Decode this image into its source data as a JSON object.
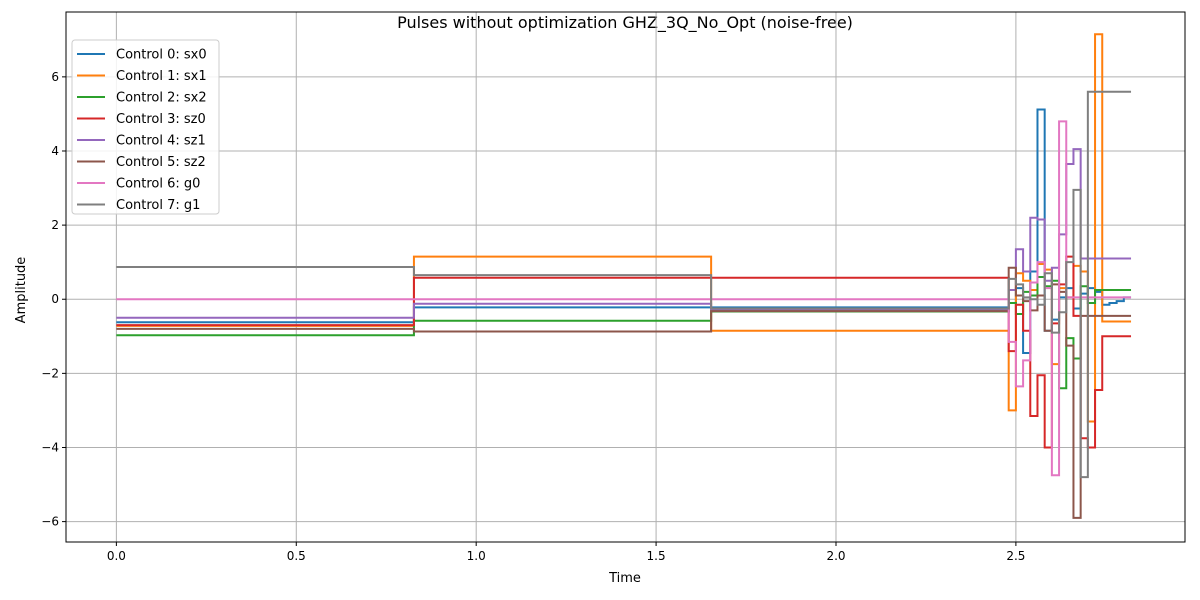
{
  "chart_data": {
    "type": "line",
    "title": "Pulses without optimization GHZ_3Q_No_Opt (noise-free)",
    "xlabel": "Time",
    "ylabel": "Amplitude",
    "xlim": [
      -0.14,
      2.97
    ],
    "ylim": [
      -6.55,
      7.75
    ],
    "xticks": [
      0.0,
      0.5,
      1.0,
      1.5,
      2.0,
      2.5
    ],
    "xtick_labels": [
      "0.0",
      "0.5",
      "1.0",
      "1.5",
      "2.0",
      "2.5"
    ],
    "yticks": [
      -6,
      -4,
      -2,
      0,
      2,
      4,
      6
    ],
    "ytick_labels": [
      "−6",
      "−4",
      "−2",
      "0",
      "2",
      "4",
      "6"
    ],
    "grid": true,
    "legend_position": "upper-left",
    "step_style": "post",
    "x_edges": [
      0.0,
      0.827,
      1.653,
      2.48,
      2.5,
      2.52,
      2.54,
      2.56,
      2.58,
      2.6,
      2.62,
      2.64,
      2.66,
      2.68,
      2.7,
      2.72,
      2.74,
      2.76,
      2.78,
      2.8,
      2.82
    ],
    "series": [
      {
        "name": "Control 0: sx0",
        "color": "#1f77b4",
        "values": [
          -0.62,
          -0.22,
          -0.22,
          -0.1,
          0.3,
          -1.45,
          0.75,
          5.12,
          -0.85,
          -0.55,
          0.05,
          0.3,
          -0.25,
          0.15,
          0.3,
          0.2,
          -0.15,
          -0.1,
          -0.05,
          0.05
        ]
      },
      {
        "name": "Control 1: sx1",
        "color": "#ff7f0e",
        "values": [
          -0.72,
          1.15,
          -0.85,
          -3.0,
          0.7,
          0.5,
          0.25,
          0.95,
          0.8,
          -1.75,
          0.3,
          0.05,
          0.9,
          0.75,
          -3.3,
          7.15,
          -0.6,
          -0.6,
          -0.6,
          -0.6
        ]
      },
      {
        "name": "Control 2: sx2",
        "color": "#2ca02c",
        "values": [
          -0.97,
          -0.58,
          -0.33,
          -0.1,
          -0.4,
          0.2,
          0.1,
          0.6,
          0.35,
          0.5,
          -2.4,
          -1.05,
          -1.6,
          0.35,
          -0.1,
          0.25,
          0.25,
          0.25,
          0.25,
          0.25
        ]
      },
      {
        "name": "Control 3: sz0",
        "color": "#d62728",
        "values": [
          -0.7,
          0.58,
          0.58,
          -1.4,
          -0.15,
          -0.85,
          -3.15,
          -2.05,
          -4.0,
          -0.65,
          0.4,
          1.15,
          -0.45,
          -3.75,
          -4.0,
          -2.45,
          -1.0,
          -1.0,
          -1.0,
          -1.0
        ]
      },
      {
        "name": "Control 4: sz1",
        "color": "#9467bd",
        "values": [
          -0.5,
          -0.12,
          -0.3,
          0.25,
          1.35,
          0.75,
          2.2,
          2.15,
          0.5,
          0.85,
          1.75,
          3.65,
          4.05,
          1.1,
          1.1,
          1.1,
          1.1,
          1.1,
          1.1,
          1.1
        ]
      },
      {
        "name": "Control 5: sz2",
        "color": "#8c564b",
        "values": [
          -0.8,
          -0.87,
          -0.32,
          0.85,
          0.1,
          -0.05,
          -0.3,
          0.1,
          -0.85,
          0.4,
          0.2,
          -1.25,
          -5.9,
          -0.45,
          -0.45,
          -0.45,
          -0.45,
          -0.45,
          -0.45,
          -0.45
        ]
      },
      {
        "name": "Control 6: g0",
        "color": "#e377c2",
        "values": [
          0.0,
          0.0,
          0.0,
          -1.15,
          -2.35,
          -1.65,
          0.45,
          1.0,
          0.3,
          -4.75,
          4.8,
          0.05,
          0.05,
          0.05,
          0.05,
          0.05,
          0.05,
          0.05,
          0.05,
          0.05
        ]
      },
      {
        "name": "Control 7: g1",
        "color": "#7f7f7f",
        "values": [
          0.87,
          0.65,
          -0.25,
          0.55,
          0.4,
          0.05,
          0.0,
          -0.15,
          0.7,
          -0.9,
          -0.35,
          1.0,
          2.95,
          -4.8,
          5.6,
          5.6,
          5.6,
          5.6,
          5.6,
          5.6
        ]
      }
    ]
  }
}
